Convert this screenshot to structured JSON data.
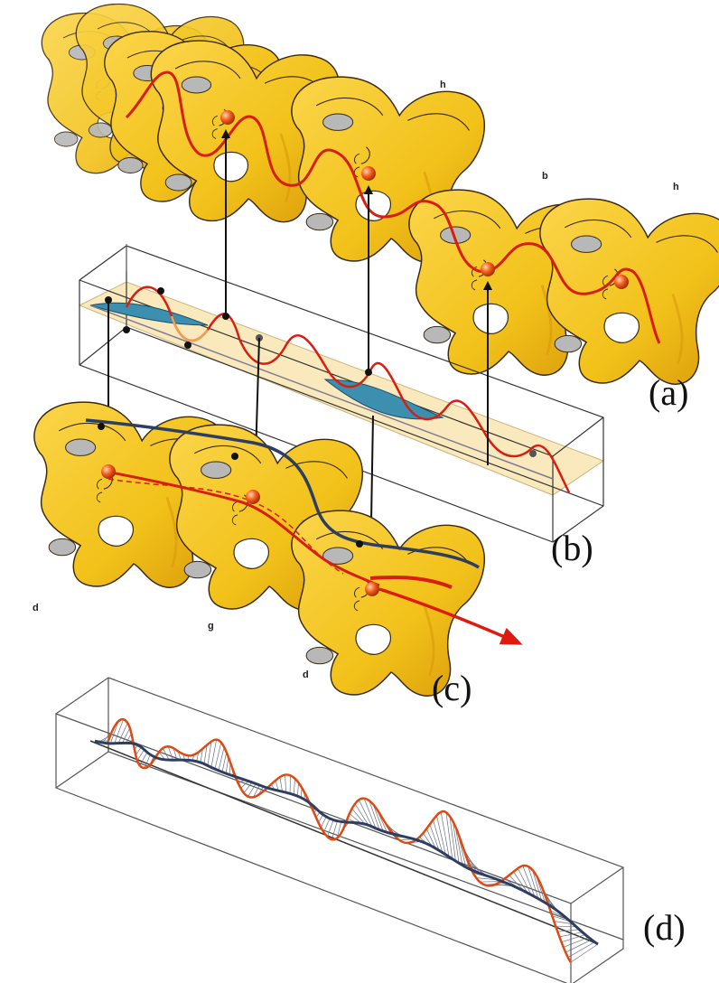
{
  "figure": {
    "panel_labels": {
      "a": "(a)",
      "b": "(b)",
      "c": "(c)",
      "d": "(d)"
    },
    "pelvis_labels": {
      "h1": "h",
      "b": "b",
      "h2": "h",
      "d1": "d",
      "g": "g",
      "d2": "d"
    }
  },
  "colors": {
    "pelvis_fill": "#f2c21a",
    "pelvis_shade": "#d99a0a",
    "pelvis_outline": "#3a2a10",
    "trajectory_red": "#d81e10",
    "trajectory_orange": "#f0a050",
    "path_navy": "#2e3e62",
    "ribbon_blue": "#3d8fb0",
    "plane_tan": "#f7e2a6",
    "box_line": "#333333",
    "marker_orange": "#f25a1a"
  },
  "icons": {
    "pelvis": "pelvis-bone-icon",
    "arrow": "black-arrow-icon",
    "marker": "orange-ball-marker-icon"
  }
}
